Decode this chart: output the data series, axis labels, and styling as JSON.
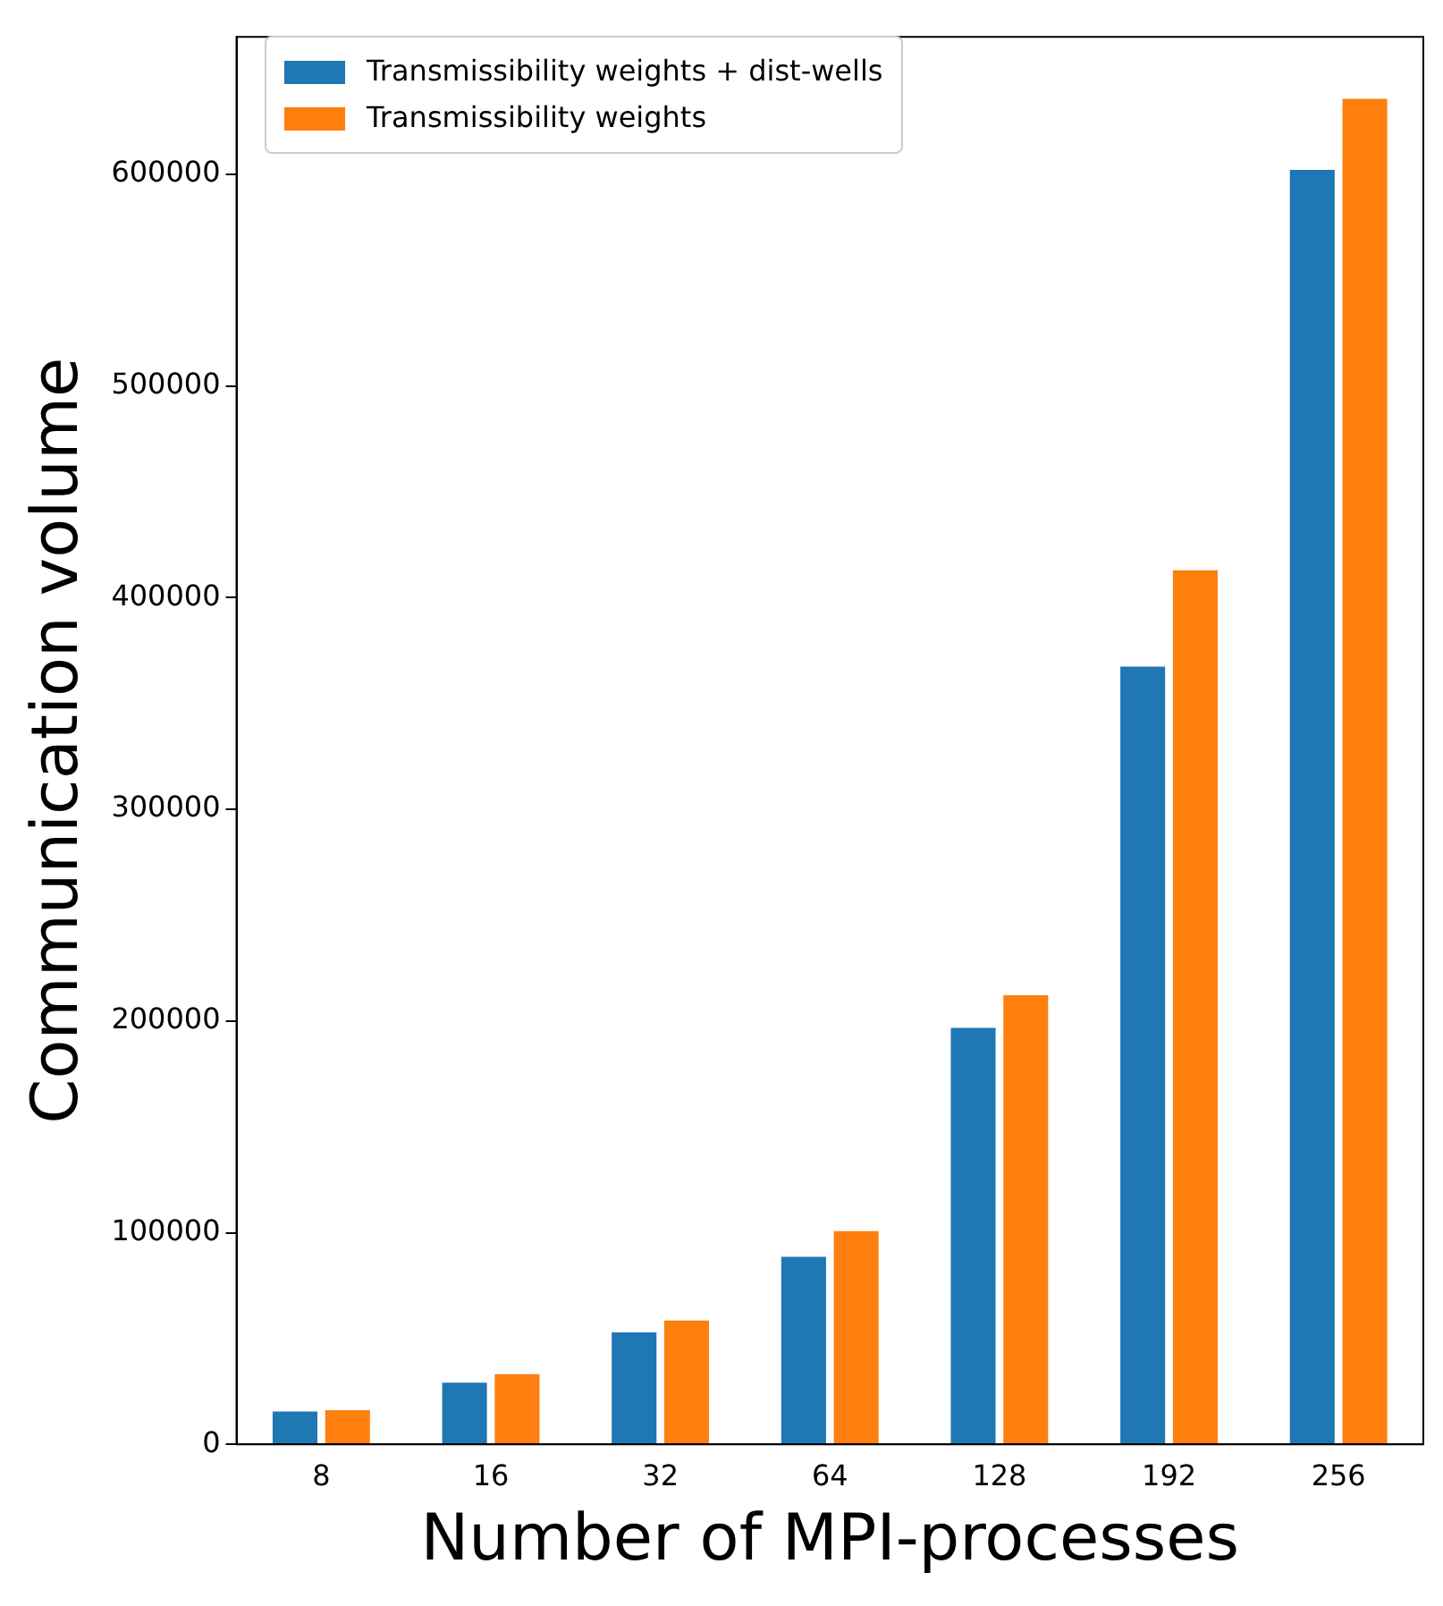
{
  "chart_data": {
    "type": "bar",
    "xlabel": "Number of MPI-processes",
    "ylabel": "Communication volume",
    "categories": [
      "8",
      "16",
      "32",
      "64",
      "128",
      "192",
      "256"
    ],
    "series": [
      {
        "name": "Transmissibility weights + dist-wells",
        "color": "#1f77b4",
        "values": [
          16300,
          30000,
          53700,
          89400,
          197600,
          368300,
          603000
        ]
      },
      {
        "name": "Transmissibility weights",
        "color": "#ff7f0e",
        "values": [
          17000,
          34000,
          59300,
          101600,
          213000,
          413800,
          636600
        ]
      }
    ],
    "ylim": [
      0,
      665000
    ],
    "yticks": [
      0,
      100000,
      200000,
      300000,
      400000,
      500000,
      600000
    ],
    "grid": false,
    "legend": "top left"
  }
}
